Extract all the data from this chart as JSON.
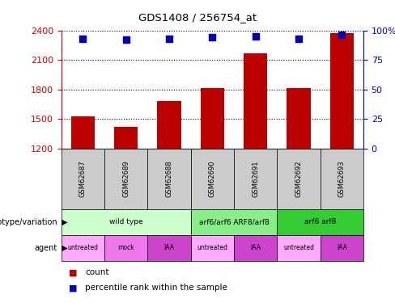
{
  "title": "GDS1408 / 256754_at",
  "samples": [
    "GSM62687",
    "GSM62689",
    "GSM62688",
    "GSM62690",
    "GSM62691",
    "GSM62692",
    "GSM62693"
  ],
  "counts": [
    1530,
    1420,
    1680,
    1810,
    2170,
    1810,
    2370
  ],
  "percentile_ranks": [
    93,
    92,
    93,
    94,
    95,
    93,
    96
  ],
  "ylim_left": [
    1200,
    2400
  ],
  "ylim_right": [
    0,
    100
  ],
  "yticks_left": [
    1200,
    1500,
    1800,
    2100,
    2400
  ],
  "yticks_right": [
    0,
    25,
    50,
    75,
    100
  ],
  "bar_color": "#bb0000",
  "dot_color": "#0000bb",
  "bar_width": 0.55,
  "genotype_groups": [
    {
      "label": "wild type",
      "start": 0,
      "end": 3,
      "color": "#ccffcc"
    },
    {
      "label": "arf6/arf6 ARF8/arf8",
      "start": 3,
      "end": 5,
      "color": "#88ee88"
    },
    {
      "label": "arf6 arf8",
      "start": 5,
      "end": 7,
      "color": "#33cc33"
    }
  ],
  "agent_labels": [
    "untreated",
    "mock",
    "IAA",
    "untreated",
    "IAA",
    "untreated",
    "IAA"
  ],
  "agent_colors": [
    "#ffaaff",
    "#ee77ee",
    "#cc44cc",
    "#ffaaff",
    "#cc44cc",
    "#ffaaff",
    "#cc44cc"
  ],
  "legend_count_label": "count",
  "legend_percentile_label": "percentile rank within the sample",
  "left_axis_color": "#cc0000",
  "right_axis_color": "#0000cc",
  "xlabel_genotype": "genotype/variation",
  "xlabel_agent": "agent"
}
